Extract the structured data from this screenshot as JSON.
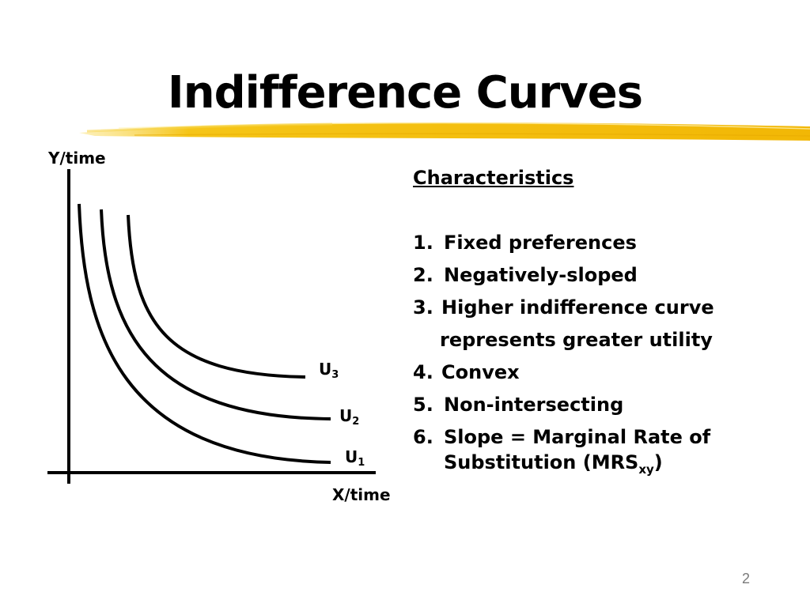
{
  "slide": {
    "title": "Indifference Curves",
    "page_number": "2",
    "accent_color": "#f5c518"
  },
  "diagram": {
    "y_axis_label": "Y/time",
    "x_axis_label": "X/time",
    "curves": [
      {
        "label": "U",
        "subscript": "1"
      },
      {
        "label": "U",
        "subscript": "2"
      },
      {
        "label": "U",
        "subscript": "3"
      }
    ]
  },
  "characteristics": {
    "heading": "Characteristics",
    "items": [
      {
        "num": "1.",
        "text": "Fixed preferences"
      },
      {
        "num": "2.",
        "text": "Negatively-sloped"
      },
      {
        "num": "3.",
        "text": "Higher indifference curve",
        "continuation": "represents greater utility"
      },
      {
        "num": "4.",
        "text": "Convex"
      },
      {
        "num": "5.",
        "text": "Non-intersecting"
      },
      {
        "num": "6.",
        "text": "Slope = Marginal Rate of",
        "line2": "Substitution (MRS",
        "line2_sub": "xy",
        "line2_end": ")"
      }
    ]
  }
}
